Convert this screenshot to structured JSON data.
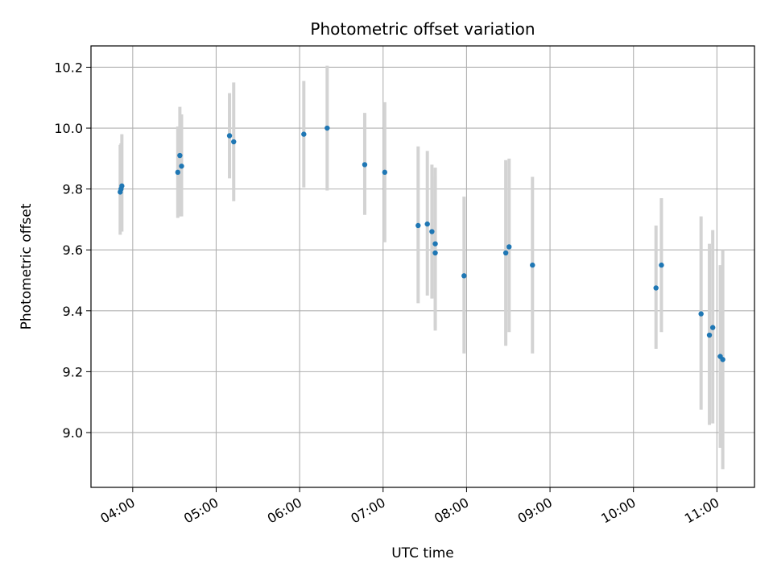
{
  "chart_data": {
    "type": "scatter",
    "title": "Photometric offset variation",
    "xlabel": "UTC time",
    "ylabel": "Photometric offset",
    "x_unit": "hours (UTC)",
    "xlim": [
      3.5,
      11.45
    ],
    "ylim": [
      8.82,
      10.27
    ],
    "x_ticks": [
      {
        "value": 4,
        "label": "04:00"
      },
      {
        "value": 5,
        "label": "05:00"
      },
      {
        "value": 6,
        "label": "06:00"
      },
      {
        "value": 7,
        "label": "07:00"
      },
      {
        "value": 8,
        "label": "08:00"
      },
      {
        "value": 9,
        "label": "09:00"
      },
      {
        "value": 10,
        "label": "10:00"
      },
      {
        "value": 11,
        "label": "11:00"
      }
    ],
    "y_ticks": [
      {
        "value": 9.0,
        "label": "9.0"
      },
      {
        "value": 9.2,
        "label": "9.2"
      },
      {
        "value": 9.4,
        "label": "9.4"
      },
      {
        "value": 9.6,
        "label": "9.6"
      },
      {
        "value": 9.8,
        "label": "9.8"
      },
      {
        "value": 10.0,
        "label": "10.0"
      },
      {
        "value": 10.2,
        "label": "10.2"
      }
    ],
    "grid": true,
    "point_color": "#1f77b4",
    "errorbar_color": "#d3d3d3",
    "points": [
      {
        "x": 3.85,
        "y": 9.79,
        "low": 9.65,
        "high": 9.945
      },
      {
        "x": 3.87,
        "y": 9.81,
        "low": 9.66,
        "high": 9.98
      },
      {
        "x": 3.86,
        "y": 9.8,
        "low": 9.66,
        "high": 9.95
      },
      {
        "x": 4.54,
        "y": 9.855,
        "low": 9.705,
        "high": 10.005
      },
      {
        "x": 4.565,
        "y": 9.91,
        "low": 9.71,
        "high": 10.07
      },
      {
        "x": 4.585,
        "y": 9.875,
        "low": 9.71,
        "high": 10.045
      },
      {
        "x": 5.16,
        "y": 9.975,
        "low": 9.835,
        "high": 10.115
      },
      {
        "x": 5.21,
        "y": 9.955,
        "low": 9.76,
        "high": 10.15
      },
      {
        "x": 6.05,
        "y": 9.98,
        "low": 9.805,
        "high": 10.155
      },
      {
        "x": 6.33,
        "y": 10.0,
        "low": 9.795,
        "high": 10.205
      },
      {
        "x": 6.78,
        "y": 9.88,
        "low": 9.715,
        "high": 10.05
      },
      {
        "x": 7.02,
        "y": 9.855,
        "low": 9.625,
        "high": 10.085
      },
      {
        "x": 7.42,
        "y": 9.68,
        "low": 9.425,
        "high": 9.94
      },
      {
        "x": 7.53,
        "y": 9.685,
        "low": 9.45,
        "high": 9.925
      },
      {
        "x": 7.585,
        "y": 9.66,
        "low": 9.44,
        "high": 9.88
      },
      {
        "x": 7.625,
        "y": 9.62,
        "low": 9.335,
        "high": 9.87
      },
      {
        "x": 7.625,
        "y": 9.59,
        "low": 9.345,
        "high": 9.84
      },
      {
        "x": 7.97,
        "y": 9.515,
        "low": 9.26,
        "high": 9.775
      },
      {
        "x": 8.47,
        "y": 9.59,
        "low": 9.285,
        "high": 9.895
      },
      {
        "x": 8.51,
        "y": 9.61,
        "low": 9.33,
        "high": 9.9
      },
      {
        "x": 8.79,
        "y": 9.55,
        "low": 9.26,
        "high": 9.84
      },
      {
        "x": 10.27,
        "y": 9.475,
        "low": 9.275,
        "high": 9.68
      },
      {
        "x": 10.335,
        "y": 9.55,
        "low": 9.33,
        "high": 9.77
      },
      {
        "x": 10.81,
        "y": 9.39,
        "low": 9.075,
        "high": 9.71
      },
      {
        "x": 10.91,
        "y": 9.32,
        "low": 9.025,
        "high": 9.62
      },
      {
        "x": 10.95,
        "y": 9.345,
        "low": 9.03,
        "high": 9.665
      },
      {
        "x": 11.04,
        "y": 9.25,
        "low": 8.95,
        "high": 9.55
      },
      {
        "x": 11.07,
        "y": 9.24,
        "low": 8.88,
        "high": 9.6
      }
    ]
  }
}
